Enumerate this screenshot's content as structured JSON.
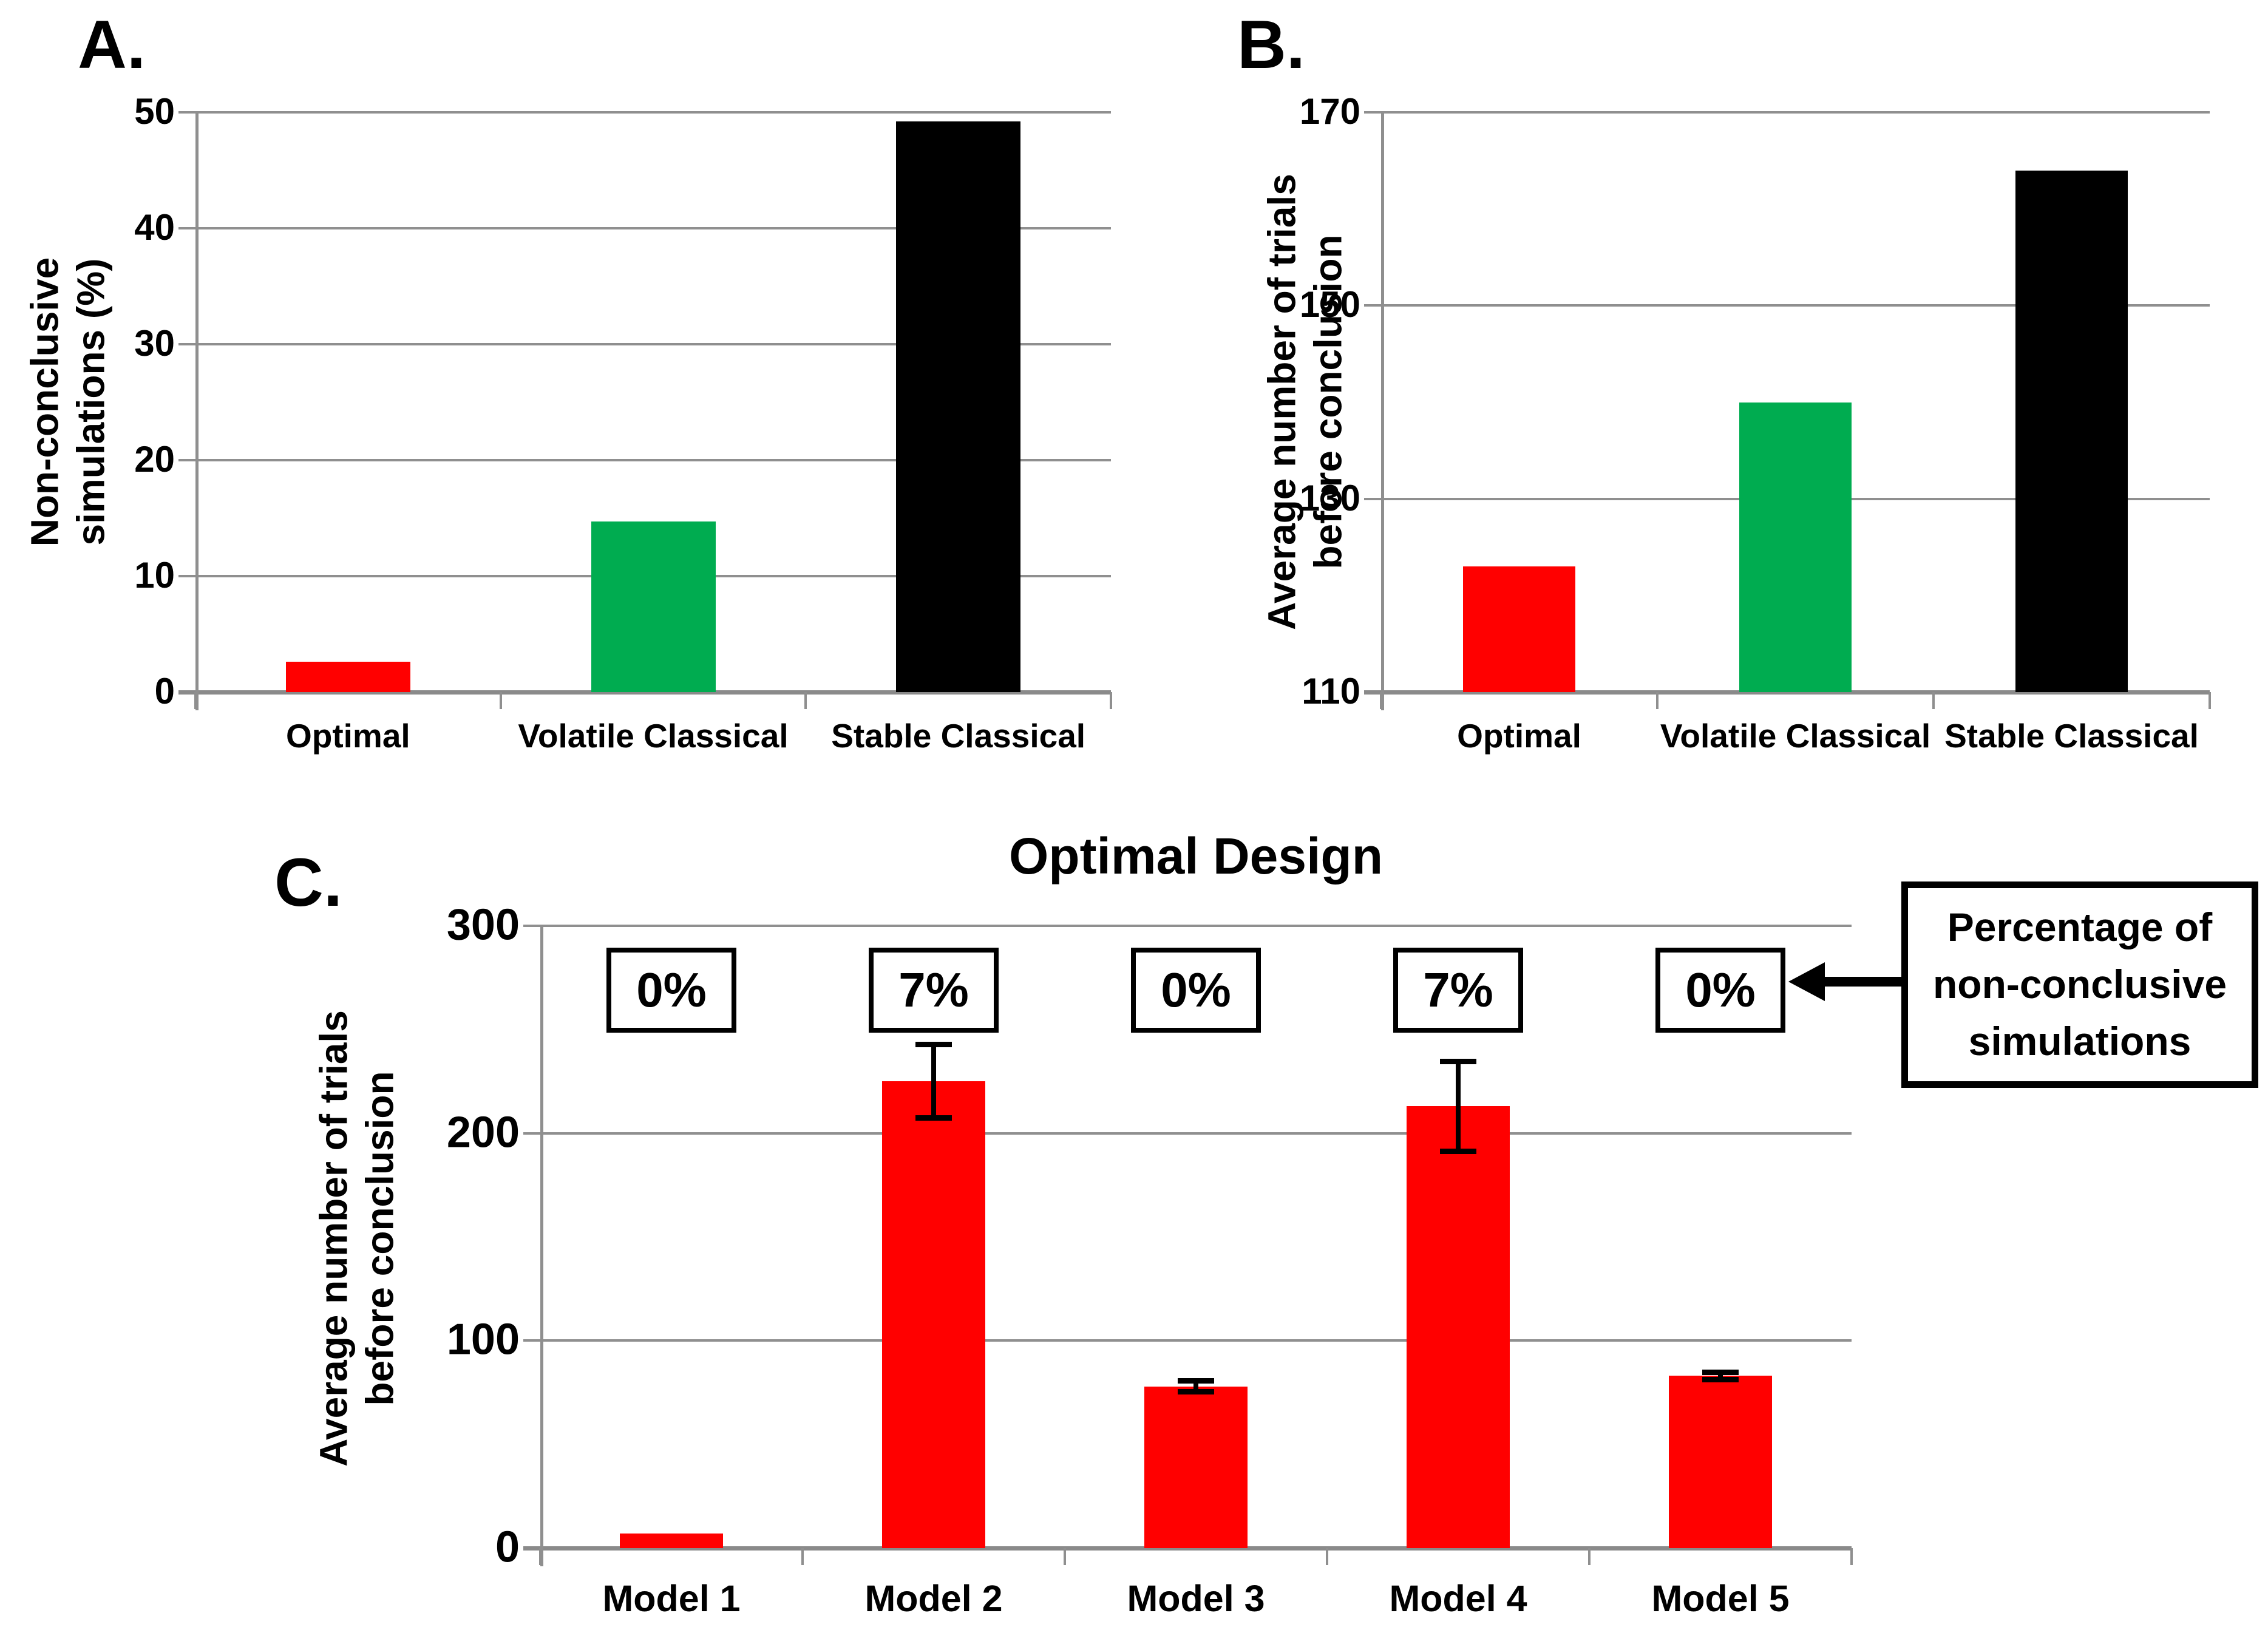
{
  "figure": {
    "background": "#FFFFFF",
    "grid_color": "#8F8F8F",
    "text_color": "#000000",
    "accent_red": "#FF0000",
    "accent_green": "#00AC50",
    "accent_black": "#000000"
  },
  "panels": {
    "a": {
      "label": "A."
    },
    "b": {
      "label": "B."
    },
    "c": {
      "label": "C."
    }
  },
  "chart_data": [
    {
      "id": "A",
      "type": "bar",
      "title": "",
      "ylabel": "Non-conclusive simulations (%)",
      "ylabel_lines": [
        "Non-conclusive",
        "simulations (%)"
      ],
      "categories": [
        "Optimal",
        "Volatile Classical",
        "Stable Classical"
      ],
      "values": [
        2.6,
        14.7,
        49.2
      ],
      "bar_colors": [
        "#FF0000",
        "#00AC50",
        "#000000"
      ],
      "ylim": [
        0,
        50
      ],
      "yticks": [
        0,
        10,
        20,
        30,
        40,
        50
      ],
      "grid": true,
      "legend_position": "none"
    },
    {
      "id": "B",
      "type": "bar",
      "title": "",
      "ylabel": "Average number of trials before conclusion",
      "ylabel_lines": [
        "Average number of trials",
        "before conclusion"
      ],
      "categories": [
        "Optimal",
        "Volatile Classical",
        "Stable Classical"
      ],
      "values": [
        123,
        140,
        164
      ],
      "bar_colors": [
        "#FF0000",
        "#00AC50",
        "#000000"
      ],
      "ylim": [
        110,
        170
      ],
      "yticks": [
        110,
        130,
        150,
        170
      ],
      "grid": true,
      "legend_position": "none"
    },
    {
      "id": "C",
      "type": "bar",
      "title": "Optimal Design",
      "ylabel": "Average number of trials before conclusion",
      "ylabel_lines": [
        "Average number of trials",
        "before conclusion"
      ],
      "categories": [
        "Model 1",
        "Model 2",
        "Model 3",
        "Model 4",
        "Model 5"
      ],
      "values": [
        7,
        225,
        78,
        213,
        83
      ],
      "errors": [
        0,
        19,
        4,
        23,
        3
      ],
      "bar_colors": [
        "#FF0000",
        "#FF0000",
        "#FF0000",
        "#FF0000",
        "#FF0000"
      ],
      "ylim": [
        0,
        300
      ],
      "yticks": [
        0,
        100,
        200,
        300
      ],
      "pct_labels": [
        "0%",
        "7%",
        "0%",
        "7%",
        "0%"
      ],
      "annotation": "Percentage of non-conclusive simulations",
      "annotation_lines": [
        "Percentage of",
        "non-conclusive",
        "simulations"
      ],
      "grid": true,
      "legend_position": "right"
    }
  ]
}
